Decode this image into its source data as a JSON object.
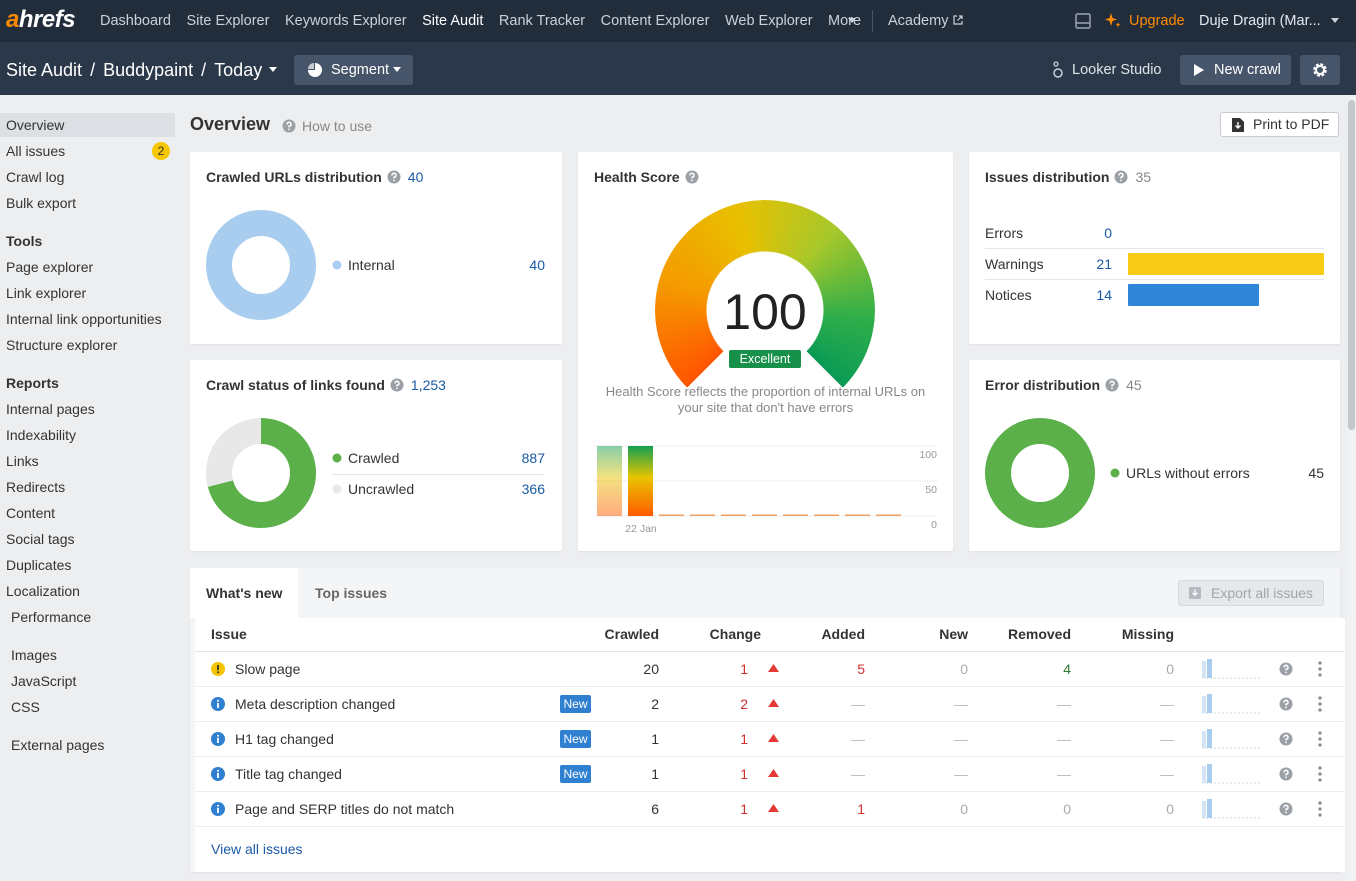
{
  "nav": {
    "logo": "ahrefs",
    "items": [
      "Dashboard",
      "Site Explorer",
      "Keywords Explorer",
      "Site Audit",
      "Rank Tracker",
      "Content Explorer",
      "Web Explorer",
      "More"
    ],
    "active": 3,
    "academy": "Academy",
    "upgrade": "Upgrade",
    "user": "Duje Dragin (Mar..."
  },
  "subbar": {
    "crumbs": [
      "Site Audit",
      "Buddypaint",
      "Today"
    ],
    "separator": "/",
    "segment": "Segment",
    "looker": "Looker Studio",
    "new_crawl": "New crawl"
  },
  "sidebar": {
    "items": [
      {
        "label": "Overview",
        "selected": true
      },
      {
        "label": "All issues",
        "badge": 2
      },
      {
        "label": "Crawl log"
      },
      {
        "label": "Bulk export"
      },
      {
        "label": "Tools",
        "heading": true
      },
      {
        "label": "Page explorer"
      },
      {
        "label": "Link explorer"
      },
      {
        "label": "Internal link opportunities"
      },
      {
        "label": "Structure explorer"
      },
      {
        "label": "Reports",
        "heading": true
      },
      {
        "label": "Internal pages"
      },
      {
        "label": "Indexability"
      },
      {
        "label": "Links"
      },
      {
        "label": "Redirects"
      },
      {
        "label": "Content"
      },
      {
        "label": "Social tags"
      },
      {
        "label": "Duplicates"
      },
      {
        "label": "Localization"
      },
      {
        "label": "Performance"
      },
      {
        "label": "Images"
      },
      {
        "label": "JavaScript"
      },
      {
        "label": "CSS"
      },
      {
        "label": "External pages"
      }
    ]
  },
  "overview": {
    "title": "Overview",
    "how_to": "How to use",
    "print": "Print to PDF"
  },
  "crawled_urls": {
    "title": "Crawled URLs distribution",
    "total": 40,
    "legend": [
      {
        "label": "Internal",
        "value": 40,
        "color": "#a9cdef"
      }
    ]
  },
  "crawl_status": {
    "title": "Crawl status of links found",
    "total": "1,253",
    "legend": [
      {
        "label": "Crawled",
        "value": 887,
        "color": "#5bb04a"
      },
      {
        "label": "Uncrawled",
        "value": 366,
        "color": "#e8e8e8"
      }
    ]
  },
  "health": {
    "title": "Health Score",
    "score": 100,
    "badge": "Excellent",
    "description": "Health Score reflects the proportion of internal URLs on your site that don't have errors",
    "chart": {
      "x": [
        null,
        "22 Jan",
        null,
        null,
        null,
        null,
        null,
        null,
        null,
        null
      ],
      "values": [
        100,
        100,
        0,
        0,
        0,
        0,
        0,
        0,
        0,
        0
      ],
      "ylim": [
        0,
        100
      ],
      "yticks": [
        0,
        50,
        100
      ]
    }
  },
  "issues_dist": {
    "title": "Issues distribution",
    "total": 35,
    "rows": [
      {
        "label": "Errors",
        "value": 0,
        "color": "#e53935"
      },
      {
        "label": "Warnings",
        "value": 21,
        "color": "#f8cc16"
      },
      {
        "label": "Notices",
        "value": 14,
        "color": "#2f86d8"
      }
    ]
  },
  "error_dist": {
    "title": "Error distribution",
    "total": 45,
    "legend": [
      {
        "label": "URLs without errors",
        "value": 45,
        "color": "#5bb04a"
      }
    ]
  },
  "issues_table": {
    "tabs": [
      "What's new",
      "Top issues"
    ],
    "export": "Export all issues",
    "columns": [
      "Issue",
      "Crawled",
      "Change",
      "Added",
      "New",
      "Removed",
      "Missing"
    ],
    "badge_label": "New",
    "rows": [
      {
        "type": "warning",
        "issue": "Slow page",
        "cells": [
          20,
          1,
          5,
          0,
          4,
          0
        ]
      },
      {
        "type": "info",
        "issue": "Meta description changed",
        "new": true,
        "cells": [
          2,
          2,
          "—",
          "—",
          "—",
          "—"
        ]
      },
      {
        "type": "info",
        "issue": "H1 tag changed",
        "new": true,
        "cells": [
          1,
          1,
          "—",
          "—",
          "—",
          "—"
        ]
      },
      {
        "type": "info",
        "issue": "Title tag changed",
        "new": true,
        "cells": [
          1,
          1,
          "—",
          "—",
          "—",
          "—"
        ]
      },
      {
        "type": "info",
        "issue": "Page and SERP titles do not match",
        "cells": [
          6,
          1,
          1,
          0,
          0,
          0
        ]
      }
    ],
    "view_all": "View all issues"
  }
}
